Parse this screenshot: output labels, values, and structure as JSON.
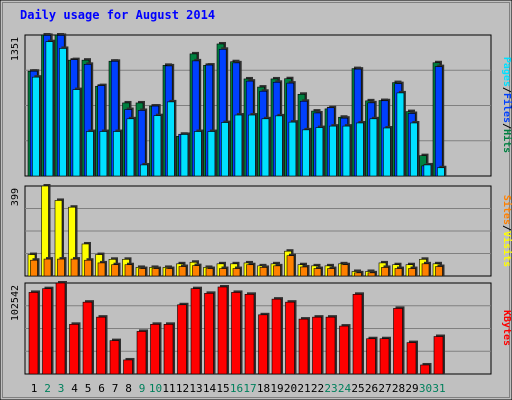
{
  "title": "Daily usage for August 2014",
  "colors": {
    "background": "#c0c0c0",
    "hits": "#008040",
    "files": "#0040ff",
    "pages": "#00e0ff",
    "visits": "#ffff00",
    "sites": "#ff8000",
    "kbytes": "#ff0000",
    "title": "#0000ff",
    "weekend_label": "#00805c",
    "weekday_label": "#000000"
  },
  "chart_data": [
    {
      "type": "bar",
      "panel": "hits_files_pages",
      "max_label": "1351",
      "right_legend": [
        "Pages",
        "/",
        "Files",
        "/",
        "Hits"
      ],
      "ylim": [
        0,
        1351
      ],
      "categories": [
        "1",
        "2",
        "3",
        "4",
        "5",
        "6",
        "7",
        "8",
        "9",
        "10",
        "11",
        "12",
        "13",
        "14",
        "15",
        "16",
        "17",
        "18",
        "19",
        "20",
        "21",
        "22",
        "23",
        "24",
        "25",
        "26",
        "27",
        "28",
        "29",
        "30",
        "31"
      ],
      "weekend_days": [
        "2",
        "3",
        "9",
        "10",
        "16",
        "17",
        "23",
        "24",
        "30",
        "31"
      ],
      "series": [
        {
          "name": "Hits",
          "values": [
            1004,
            1351,
            1351,
            1110,
            1110,
            860,
            1100,
            700,
            700,
            670,
            1060,
            380,
            1170,
            1060,
            1265,
            1095,
            930,
            852,
            930,
            932,
            783,
            622,
            643,
            563,
            1029,
            720,
            723,
            895,
            617,
            195,
            1085
          ]
        },
        {
          "name": "Files",
          "values": [
            1004,
            1347,
            1347,
            1115,
            1070,
            866,
            1099,
            637,
            628,
            670,
            1055,
            400,
            1103,
            1063,
            1214,
            1084,
            909,
            812,
            898,
            890,
            716,
            604,
            654,
            554,
            1024,
            701,
            721,
            885,
            599,
            97,
            1048
          ]
        },
        {
          "name": "Pages",
          "values": [
            947,
            1287,
            1222,
            828,
            426,
            426,
            426,
            548,
            106,
            578,
            710,
            398,
            426,
            426,
            512,
            584,
            584,
            548,
            576,
            516,
            442,
            464,
            478,
            478,
            508,
            548,
            460,
            796,
            508,
            106,
            79
          ]
        }
      ]
    },
    {
      "type": "bar",
      "panel": "visits_sites",
      "max_label": "399",
      "right_legend": [
        "Sites",
        "/",
        "Visits"
      ],
      "ylim": [
        0,
        399
      ],
      "categories": [
        "1",
        "2",
        "3",
        "4",
        "5",
        "6",
        "7",
        "8",
        "9",
        "10",
        "11",
        "12",
        "13",
        "14",
        "15",
        "16",
        "17",
        "18",
        "19",
        "20",
        "21",
        "22",
        "23",
        "24",
        "25",
        "26",
        "27",
        "28",
        "29",
        "30",
        "31"
      ],
      "series": [
        {
          "name": "Visits",
          "values": [
            95,
            399,
            335,
            305,
            142,
            95,
            74,
            74,
            38,
            38,
            38,
            54,
            61,
            38,
            54,
            54,
            58,
            45,
            54,
            110,
            50,
            45,
            45,
            54,
            20,
            20,
            58,
            50,
            50,
            74,
            54
          ]
        },
        {
          "name": "Sites",
          "values": [
            70,
            75,
            75,
            75,
            70,
            58,
            50,
            50,
            33,
            33,
            33,
            42,
            46,
            33,
            33,
            33,
            50,
            38,
            45,
            90,
            40,
            33,
            33,
            50,
            14,
            14,
            38,
            33,
            33,
            54,
            42
          ]
        }
      ]
    },
    {
      "type": "bar",
      "panel": "kbytes",
      "max_label": "102542",
      "right_legend": [
        "KBytes"
      ],
      "ylim": [
        0,
        102542
      ],
      "categories": [
        "1",
        "2",
        "3",
        "4",
        "5",
        "6",
        "7",
        "8",
        "9",
        "10",
        "11",
        "12",
        "13",
        "14",
        "15",
        "16",
        "17",
        "18",
        "19",
        "20",
        "21",
        "22",
        "23",
        "24",
        "25",
        "26",
        "27",
        "28",
        "29",
        "30",
        "31"
      ],
      "series": [
        {
          "name": "KBytes",
          "values": [
            91930,
            96158,
            102542,
            55970,
            80960,
            64070,
            37620,
            15840,
            47960,
            55970,
            55970,
            78000,
            96158,
            90880,
            98040,
            91930,
            89780,
            66700,
            84370,
            80960,
            61880,
            64070,
            64070,
            54000,
            89780,
            39750,
            39750,
            73900,
            35380,
            10170,
            42240
          ]
        }
      ]
    }
  ]
}
